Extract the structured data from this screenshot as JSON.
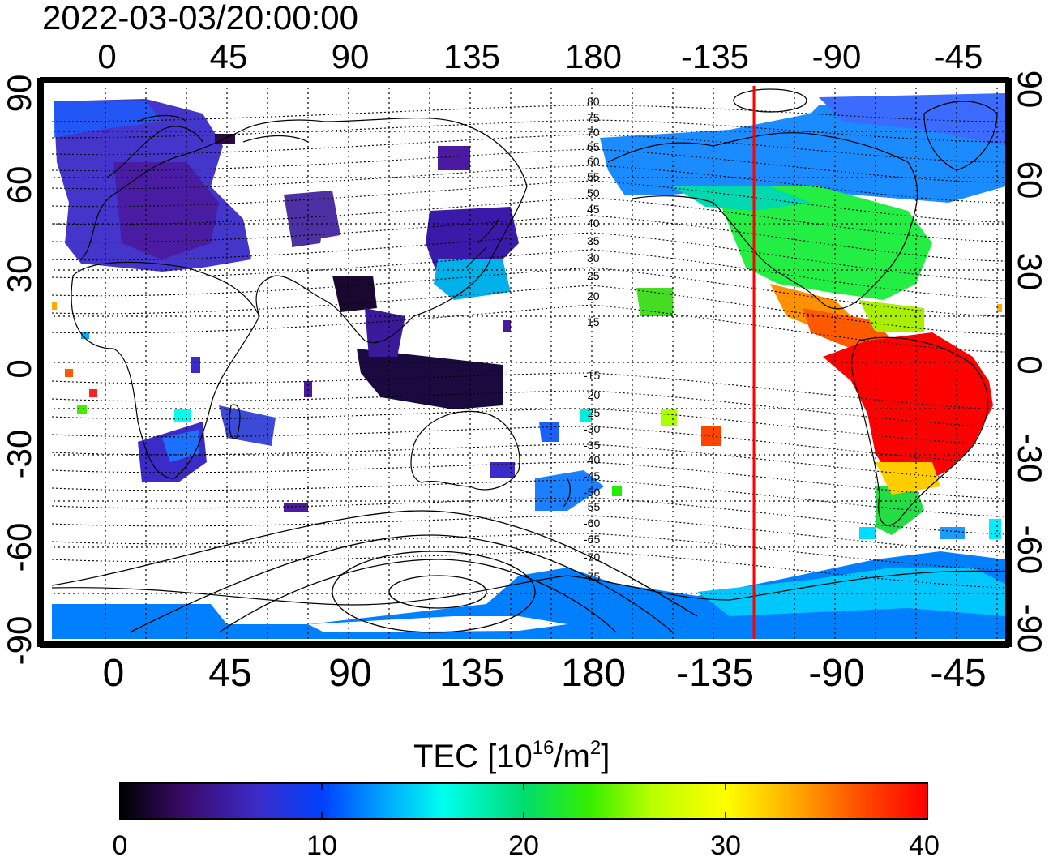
{
  "timestamp": "2022-03-03/20:00:00",
  "map": {
    "lon_ticks": [
      "0",
      "45",
      "90",
      "135",
      "180",
      "-135",
      "-90",
      "-45"
    ],
    "lat_ticks": [
      "90",
      "60",
      "30",
      "0",
      "-30",
      "-60",
      "-90"
    ],
    "contour_labels": [
      "80",
      "75",
      "70",
      "65",
      "60",
      "55",
      "50",
      "45",
      "40",
      "35",
      "30",
      "25",
      "20",
      "15",
      "-15",
      "-20",
      "-25",
      "-30",
      "-35",
      "-40",
      "-45",
      "-50",
      "-55",
      "-60",
      "-65",
      "-70",
      "-75"
    ],
    "terminator_longitude": -120,
    "terminator_color": "#ff0000"
  },
  "colorbar": {
    "label_prefix": "TEC  [10",
    "label_exp1": "16",
    "label_mid": "/m",
    "label_exp2": "2",
    "label_suffix": "]",
    "min": 0,
    "max": 40,
    "tick_labels": [
      "0",
      "10",
      "20",
      "30",
      "40"
    ]
  },
  "colors": {
    "scale": [
      "#000000",
      "#3a0a6b",
      "#3b2bc8",
      "#0044ff",
      "#00b0ff",
      "#00ffee",
      "#00e07a",
      "#22ee00",
      "#aaff00",
      "#ffff00",
      "#ffb000",
      "#ff5000",
      "#ff0000"
    ]
  }
}
